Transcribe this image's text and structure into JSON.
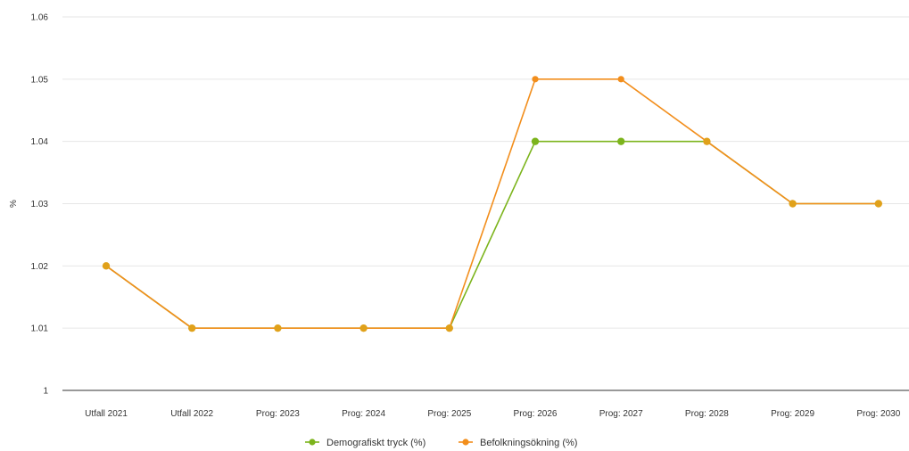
{
  "chart_data": {
    "type": "line",
    "categories": [
      "Utfall 2021",
      "Utfall 2022",
      "Prog: 2023",
      "Prog: 2024",
      "Prog: 2025",
      "Prog: 2026",
      "Prog: 2027",
      "Prog: 2028",
      "Prog: 2029",
      "Prog: 2030"
    ],
    "series": [
      {
        "name": "Demografiskt tryck (%)",
        "color": "#7cb41c",
        "values": [
          1.02,
          1.01,
          1.01,
          1.01,
          1.01,
          1.04,
          1.04,
          1.04,
          1.03,
          1.03
        ]
      },
      {
        "name": "Befolkningsökning (%)",
        "color": "#f28e1c",
        "values": [
          1.02,
          1.01,
          1.01,
          1.01,
          1.01,
          1.05,
          1.05,
          1.04,
          1.03,
          1.03
        ]
      }
    ],
    "title": "",
    "xlabel": "",
    "ylabel": "%",
    "ylim": [
      1,
      1.06
    ],
    "yticks": [
      "1",
      "1.01",
      "1.02",
      "1.03",
      "1.04",
      "1.05",
      "1.06"
    ],
    "grid": true,
    "legend_position": "bottom-center",
    "overlap_color": "#e0a11a"
  }
}
